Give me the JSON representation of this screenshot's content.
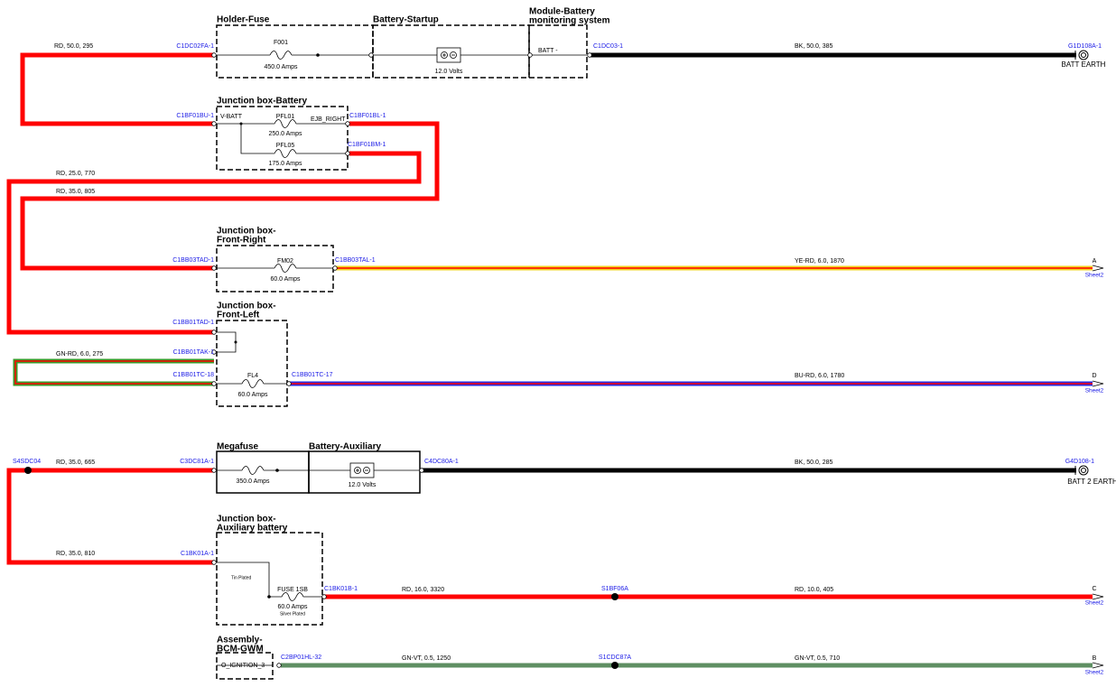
{
  "components": [
    {
      "title": [
        "Holder-Fuse"
      ],
      "labels": [
        "F001",
        "450.0 Amps"
      ]
    },
    {
      "title": [
        "Battery-Startup"
      ],
      "labels": [
        "12.0 Volts"
      ]
    },
    {
      "title": [
        "Module-Battery",
        "monitoring system"
      ],
      "labels": [
        "BATT -"
      ]
    },
    {
      "title": [
        "Junction box-Battery"
      ],
      "labels": [
        "V-BATT",
        "PFL01",
        "250.0 Amps",
        "EJB_RIGHT",
        "PFL05",
        "175.0 Amps"
      ]
    },
    {
      "title": [
        "Junction box-",
        "Front-Right"
      ],
      "labels": [
        "FM02",
        "60.0 Amps"
      ]
    },
    {
      "title": [
        "Junction box-",
        "Front-Left"
      ],
      "labels": [
        "FL4",
        "60.0 Amps"
      ]
    },
    {
      "title": [
        "Megafuse"
      ],
      "labels": [
        "350.0 Amps"
      ]
    },
    {
      "title": [
        "Battery-Auxiliary"
      ],
      "labels": [
        "12.0 Volts"
      ]
    },
    {
      "title": [
        "Junction box-",
        "Auxiliary battery"
      ],
      "labels": [
        "Tin Plated",
        "FUSE 1SB",
        "60.0 Amps",
        "Silver Plated"
      ]
    },
    {
      "title": [
        "Assembly-",
        "BCM-GWM"
      ],
      "labels": [
        "O_IGNITION_3"
      ]
    }
  ],
  "connectors": [
    "C1DC02FA-1",
    "C1DC03-1",
    "G1D108A-1",
    "C1BF01BU-1",
    "C1BF01BL-1",
    "C1BF01BM-1",
    "C1BB03TAD-1",
    "C1BB03TAL-1",
    "C1BB01TAD-1",
    "C1BB01TAK-1",
    "C1BB01TC-18",
    "C1BB01TC-17",
    "S4SDC04",
    "C3DC81A-1",
    "C4DC80A-1",
    "G4D108-1",
    "C1BK01A-1",
    "C1BK01B-1",
    "S1BF06A",
    "C2BP01HL-32",
    "S1CDC87A"
  ],
  "wires": [
    "RD, 50.0, 295",
    "BK, 50.0, 385",
    "RD, 25.0, 770",
    "RD, 35.0, 805",
    "YE-RD, 6.0, 1870",
    "GN-RD, 6.0, 275",
    "BU-RD, 6.0, 1780",
    "RD, 35.0, 665",
    "BK, 50.0, 285",
    "RD, 35.0, 810",
    "RD, 16.0, 3320",
    "RD, 10.0, 405",
    "GN-VT, 0.5, 1250",
    "GN-VT, 0.5, 710"
  ],
  "grounds": [
    "BATT EARTH",
    "BATT 2 EARTH"
  ],
  "offpage": [
    {
      "letter": "A",
      "sheet": "Sheet2"
    },
    {
      "letter": "D",
      "sheet": "Sheet2"
    },
    {
      "letter": "C",
      "sheet": "Sheet2"
    },
    {
      "letter": "B",
      "sheet": "Sheet2"
    }
  ]
}
